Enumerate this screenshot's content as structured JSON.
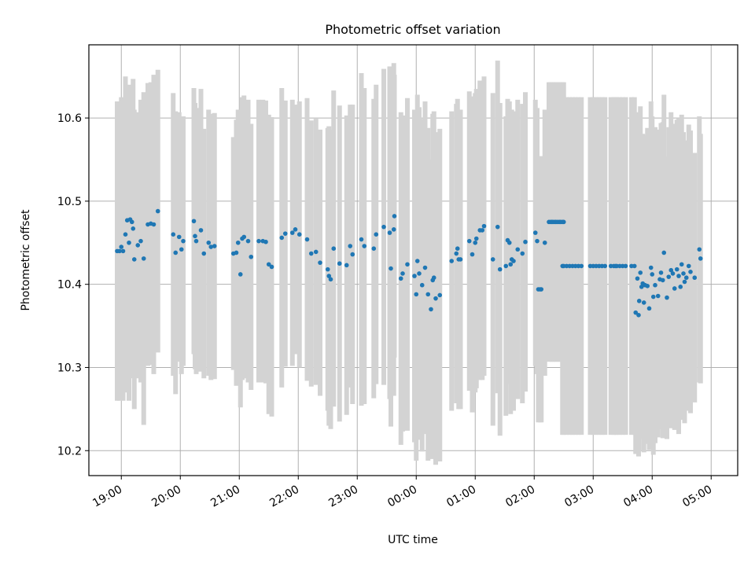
{
  "chart_data": {
    "type": "scatter",
    "title": "Photometric offset variation",
    "xlabel": "UTC time",
    "ylabel": "Photometric offset",
    "x_unit": "hours since 19:00 UTC",
    "xlim": [
      -0.55,
      10.45
    ],
    "ylim": [
      10.17,
      10.688
    ],
    "grid": true,
    "x_ticks": [
      {
        "value": 0,
        "label": "19:00"
      },
      {
        "value": 1,
        "label": "20:00"
      },
      {
        "value": 2,
        "label": "21:00"
      },
      {
        "value": 3,
        "label": "22:00"
      },
      {
        "value": 4,
        "label": "23:00"
      },
      {
        "value": 5,
        "label": "00:00"
      },
      {
        "value": 6,
        "label": "01:00"
      },
      {
        "value": 7,
        "label": "02:00"
      },
      {
        "value": 8,
        "label": "03:00"
      },
      {
        "value": 9,
        "label": "04:00"
      },
      {
        "value": 10,
        "label": "05:00"
      }
    ],
    "y_ticks": [
      {
        "value": 10.2,
        "label": "10.2"
      },
      {
        "value": 10.3,
        "label": "10.3"
      },
      {
        "value": 10.4,
        "label": "10.4"
      },
      {
        "value": 10.5,
        "label": "10.5"
      },
      {
        "value": 10.6,
        "label": "10.6"
      }
    ],
    "colors": {
      "point": "#1f77b4",
      "errorbar": "#d3d3d3",
      "grid": "#b0b0b0",
      "axis": "#000000"
    },
    "series": [
      {
        "name": "offset",
        "points": [
          [
            -0.07,
            10.44,
            0.18
          ],
          [
            -0.03,
            10.44,
            0.18
          ],
          [
            0.0,
            10.445,
            0.18
          ],
          [
            0.03,
            10.44,
            0.18
          ],
          [
            0.07,
            10.46,
            0.19
          ],
          [
            0.1,
            10.477,
            0.16
          ],
          [
            0.13,
            10.45,
            0.19
          ],
          [
            0.15,
            10.478,
            0.15
          ],
          [
            0.18,
            10.475,
            0.16
          ],
          [
            0.2,
            10.467,
            0.18
          ],
          [
            0.22,
            10.43,
            0.18
          ],
          [
            0.28,
            10.447,
            0.16
          ],
          [
            0.33,
            10.452,
            0.17
          ],
          [
            0.38,
            10.431,
            0.2
          ],
          [
            0.45,
            10.472,
            0.17
          ],
          [
            0.5,
            10.473,
            0.17
          ],
          [
            0.55,
            10.472,
            0.18
          ],
          [
            0.62,
            10.488,
            0.17
          ],
          [
            0.88,
            10.46,
            0.17
          ],
          [
            0.92,
            10.438,
            0.17
          ],
          [
            0.98,
            10.457,
            0.15
          ],
          [
            1.02,
            10.442,
            0.15
          ],
          [
            1.05,
            10.452,
            0.15
          ],
          [
            1.23,
            10.476,
            0.16
          ],
          [
            1.25,
            10.458,
            0.16
          ],
          [
            1.27,
            10.452,
            0.16
          ],
          [
            1.35,
            10.465,
            0.17
          ],
          [
            1.4,
            10.437,
            0.15
          ],
          [
            1.48,
            10.45,
            0.16
          ],
          [
            1.52,
            10.445,
            0.16
          ],
          [
            1.58,
            10.446,
            0.16
          ],
          [
            1.9,
            10.437,
            0.14
          ],
          [
            1.95,
            10.438,
            0.16
          ],
          [
            1.98,
            10.45,
            0.16
          ],
          [
            2.02,
            10.412,
            0.16
          ],
          [
            2.05,
            10.455,
            0.17
          ],
          [
            2.08,
            10.457,
            0.17
          ],
          [
            2.15,
            10.452,
            0.17
          ],
          [
            2.2,
            10.433,
            0.16
          ],
          [
            2.33,
            10.452,
            0.17
          ],
          [
            2.4,
            10.452,
            0.17
          ],
          [
            2.45,
            10.451,
            0.17
          ],
          [
            2.5,
            10.424,
            0.18
          ],
          [
            2.55,
            10.421,
            0.18
          ],
          [
            2.72,
            10.456,
            0.18
          ],
          [
            2.78,
            10.461,
            0.16
          ],
          [
            2.9,
            10.462,
            0.16
          ],
          [
            2.95,
            10.466,
            0.15
          ],
          [
            3.02,
            10.46,
            0.16
          ],
          [
            3.15,
            10.454,
            0.17
          ],
          [
            3.22,
            10.437,
            0.16
          ],
          [
            3.3,
            10.439,
            0.16
          ],
          [
            3.37,
            10.426,
            0.16
          ],
          [
            3.5,
            10.418,
            0.17
          ],
          [
            3.52,
            10.41,
            0.18
          ],
          [
            3.55,
            10.406,
            0.18
          ],
          [
            3.6,
            10.443,
            0.19
          ],
          [
            3.7,
            10.425,
            0.19
          ],
          [
            3.82,
            10.423,
            0.18
          ],
          [
            3.88,
            10.446,
            0.17
          ],
          [
            3.92,
            10.436,
            0.18
          ],
          [
            4.07,
            10.454,
            0.2
          ],
          [
            4.12,
            10.446,
            0.19
          ],
          [
            4.28,
            10.443,
            0.18
          ],
          [
            4.32,
            10.46,
            0.18
          ],
          [
            4.45,
            10.469,
            0.19
          ],
          [
            4.55,
            10.462,
            0.2
          ],
          [
            4.62,
            10.466,
            0.2
          ],
          [
            4.57,
            10.419,
            0.19
          ],
          [
            4.63,
            10.482,
            0.17
          ],
          [
            4.74,
            10.407,
            0.2
          ],
          [
            4.77,
            10.413,
            0.19
          ],
          [
            4.85,
            10.424,
            0.2
          ],
          [
            4.97,
            10.41,
            0.2
          ],
          [
            5.0,
            10.388,
            0.2
          ],
          [
            5.02,
            10.428,
            0.2
          ],
          [
            5.05,
            10.413,
            0.2
          ],
          [
            5.1,
            10.399,
            0.2
          ],
          [
            5.15,
            10.42,
            0.2
          ],
          [
            5.2,
            10.388,
            0.2
          ],
          [
            5.25,
            10.37,
            0.18
          ],
          [
            5.28,
            10.405,
            0.2
          ],
          [
            5.3,
            10.408,
            0.2
          ],
          [
            5.33,
            10.383,
            0.2
          ],
          [
            5.4,
            10.387,
            0.2
          ],
          [
            5.6,
            10.428,
            0.18
          ],
          [
            5.68,
            10.437,
            0.18
          ],
          [
            5.7,
            10.443,
            0.18
          ],
          [
            5.72,
            10.43,
            0.18
          ],
          [
            5.75,
            10.43,
            0.18
          ],
          [
            5.9,
            10.452,
            0.18
          ],
          [
            5.95,
            10.436,
            0.19
          ],
          [
            6.0,
            10.45,
            0.18
          ],
          [
            6.02,
            10.455,
            0.18
          ],
          [
            6.08,
            10.465,
            0.18
          ],
          [
            6.12,
            10.465,
            0.18
          ],
          [
            6.15,
            10.47,
            0.18
          ],
          [
            6.3,
            10.43,
            0.2
          ],
          [
            6.38,
            10.469,
            0.2
          ],
          [
            6.42,
            10.418,
            0.2
          ],
          [
            6.52,
            10.422,
            0.18
          ],
          [
            6.55,
            10.453,
            0.17
          ],
          [
            6.58,
            10.45,
            0.17
          ],
          [
            6.6,
            10.424,
            0.18
          ],
          [
            6.62,
            10.43,
            0.18
          ],
          [
            6.65,
            10.428,
            0.18
          ],
          [
            6.72,
            10.442,
            0.18
          ],
          [
            6.8,
            10.437,
            0.18
          ],
          [
            6.85,
            10.451,
            0.18
          ],
          [
            7.02,
            10.462,
            0.16
          ],
          [
            7.05,
            10.452,
            0.16
          ],
          [
            7.07,
            10.394,
            0.16
          ],
          [
            7.1,
            10.394,
            0.16
          ],
          [
            7.12,
            10.394,
            0.16
          ],
          [
            7.18,
            10.45,
            0.16
          ],
          [
            7.25,
            10.475,
            0.168
          ],
          [
            7.28,
            10.475,
            0.168
          ],
          [
            7.3,
            10.475,
            0.168
          ],
          [
            7.32,
            10.475,
            0.168
          ],
          [
            7.35,
            10.475,
            0.168
          ],
          [
            7.37,
            10.475,
            0.168
          ],
          [
            7.4,
            10.475,
            0.168
          ],
          [
            7.43,
            10.475,
            0.168
          ],
          [
            7.45,
            10.475,
            0.168
          ],
          [
            7.48,
            10.475,
            0.168
          ],
          [
            7.5,
            10.475,
            0.168
          ],
          [
            7.48,
            10.422,
            0.203
          ],
          [
            7.5,
            10.422,
            0.203
          ],
          [
            7.55,
            10.422,
            0.203
          ],
          [
            7.6,
            10.422,
            0.203
          ],
          [
            7.65,
            10.422,
            0.203
          ],
          [
            7.7,
            10.422,
            0.203
          ],
          [
            7.75,
            10.422,
            0.203
          ],
          [
            7.8,
            10.422,
            0.203
          ],
          [
            7.95,
            10.422,
            0.203
          ],
          [
            8.0,
            10.422,
            0.203
          ],
          [
            8.05,
            10.422,
            0.203
          ],
          [
            8.1,
            10.422,
            0.203
          ],
          [
            8.15,
            10.422,
            0.203
          ],
          [
            8.2,
            10.422,
            0.203
          ],
          [
            8.3,
            10.422,
            0.203
          ],
          [
            8.35,
            10.422,
            0.203
          ],
          [
            8.38,
            10.422,
            0.203
          ],
          [
            8.4,
            10.422,
            0.203
          ],
          [
            8.45,
            10.422,
            0.203
          ],
          [
            8.5,
            10.422,
            0.203
          ],
          [
            8.55,
            10.422,
            0.203
          ],
          [
            8.65,
            10.422,
            0.203
          ],
          [
            8.7,
            10.422,
            0.203
          ],
          [
            8.72,
            10.366,
            0.17
          ],
          [
            8.75,
            10.407,
            0.2
          ],
          [
            8.77,
            10.363,
            0.17
          ],
          [
            8.78,
            10.38,
            0.18
          ],
          [
            8.8,
            10.414,
            0.2
          ],
          [
            8.82,
            10.397,
            0.18
          ],
          [
            8.84,
            10.401,
            0.18
          ],
          [
            8.86,
            10.378,
            0.18
          ],
          [
            8.88,
            10.399,
            0.18
          ],
          [
            8.92,
            10.398,
            0.19
          ],
          [
            8.95,
            10.371,
            0.17
          ],
          [
            8.98,
            10.42,
            0.2
          ],
          [
            9.0,
            10.412,
            0.19
          ],
          [
            9.02,
            10.385,
            0.19
          ],
          [
            9.05,
            10.399,
            0.19
          ],
          [
            9.1,
            10.386,
            0.17
          ],
          [
            9.13,
            10.406,
            0.18
          ],
          [
            9.15,
            10.414,
            0.18
          ],
          [
            9.18,
            10.405,
            0.19
          ],
          [
            9.2,
            10.438,
            0.19
          ],
          [
            9.25,
            10.384,
            0.17
          ],
          [
            9.28,
            10.409,
            0.18
          ],
          [
            9.32,
            10.417,
            0.19
          ],
          [
            9.35,
            10.413,
            0.18
          ],
          [
            9.38,
            10.395,
            0.17
          ],
          [
            9.42,
            10.418,
            0.18
          ],
          [
            9.45,
            10.41,
            0.19
          ],
          [
            9.48,
            10.397,
            0.16
          ],
          [
            9.5,
            10.424,
            0.18
          ],
          [
            9.53,
            10.413,
            0.17
          ],
          [
            9.55,
            10.403,
            0.17
          ],
          [
            9.58,
            10.408,
            0.16
          ],
          [
            9.62,
            10.422,
            0.17
          ],
          [
            9.65,
            10.415,
            0.17
          ],
          [
            9.72,
            10.408,
            0.15
          ],
          [
            9.8,
            10.442,
            0.16
          ],
          [
            9.82,
            10.431,
            0.15
          ]
        ]
      }
    ]
  }
}
